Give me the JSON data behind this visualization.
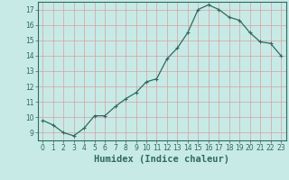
{
  "x": [
    0,
    1,
    2,
    3,
    4,
    5,
    6,
    7,
    8,
    9,
    10,
    11,
    12,
    13,
    14,
    15,
    16,
    17,
    18,
    19,
    20,
    21,
    22,
    23
  ],
  "y": [
    9.8,
    9.5,
    9.0,
    8.8,
    9.3,
    10.1,
    10.1,
    10.7,
    11.2,
    11.6,
    12.3,
    12.5,
    13.8,
    14.5,
    15.5,
    17.0,
    17.3,
    17.0,
    16.5,
    16.3,
    15.5,
    14.9,
    14.8,
    14.0
  ],
  "xlabel": "Humidex (Indice chaleur)",
  "xlim": [
    -0.5,
    23.5
  ],
  "ylim": [
    8.5,
    17.5
  ],
  "yticks": [
    9,
    10,
    11,
    12,
    13,
    14,
    15,
    16,
    17
  ],
  "xticks": [
    0,
    1,
    2,
    3,
    4,
    5,
    6,
    7,
    8,
    9,
    10,
    11,
    12,
    13,
    14,
    15,
    16,
    17,
    18,
    19,
    20,
    21,
    22,
    23
  ],
  "line_color": "#2d6b5e",
  "marker_color": "#2d6b5e",
  "bg_color": "#c8eae6",
  "grid_color": "#d4a0a0",
  "axis_color": "#2d6b5e",
  "tick_fontsize": 5.5,
  "xlabel_fontsize": 7.5,
  "linewidth": 0.9,
  "markersize": 2.2
}
